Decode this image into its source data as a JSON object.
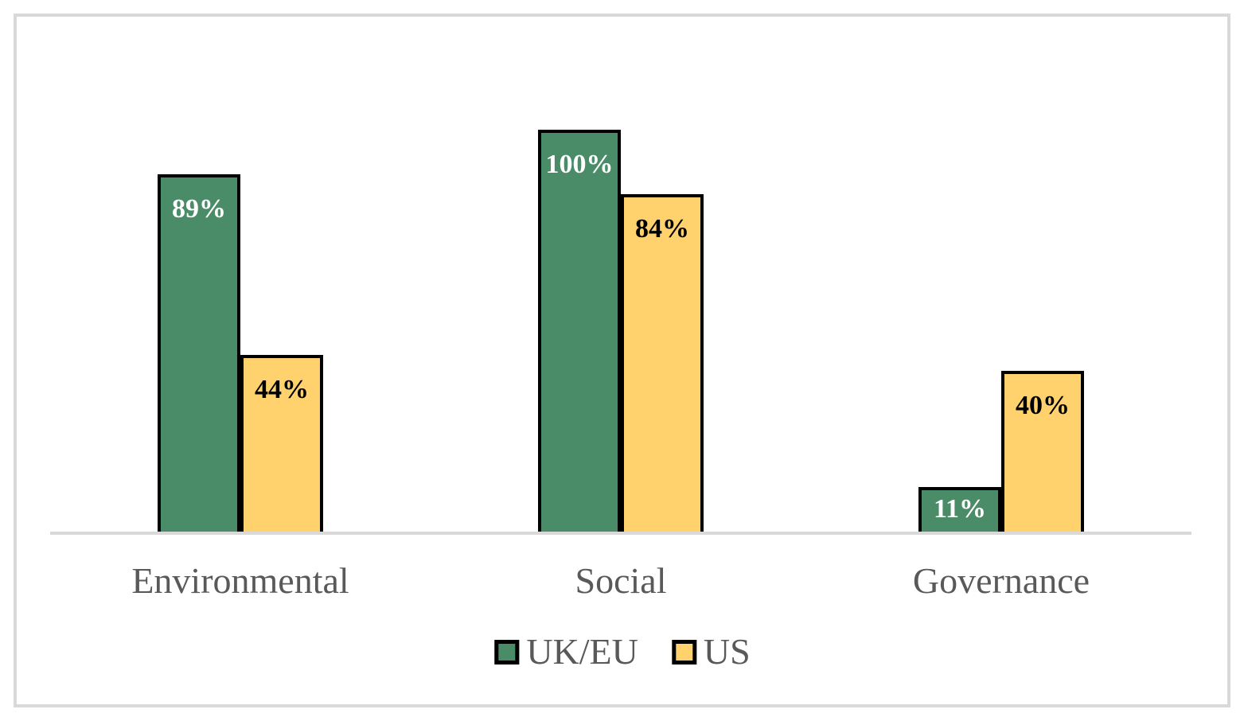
{
  "figure": {
    "frame_border_color": "#D9D9D9",
    "background_color": "#FFFFFF"
  },
  "chart_data": {
    "type": "bar",
    "title": "",
    "xlabel": "",
    "ylabel": "",
    "categories": [
      "Environmental",
      "Social",
      "Governance"
    ],
    "series": [
      {
        "name": "UK/EU",
        "values": [
          89,
          100,
          11
        ],
        "labels": [
          "89%",
          "100%",
          "11%"
        ],
        "color": "#4A8B68",
        "label_color": "#FFFFFF"
      },
      {
        "name": "US",
        "values": [
          44,
          84,
          40
        ],
        "labels": [
          "44%",
          "84%",
          "40%"
        ],
        "color": "#FFD26E",
        "label_color": "#000000"
      }
    ],
    "ylim": [
      0,
      100
    ],
    "grid": false,
    "y_axis_visible": false,
    "bar_border_color": "#000000",
    "axis_line_color": "#D9D9D9",
    "category_label_color": "#595959",
    "legend": {
      "position": "bottom",
      "entries": [
        "UK/EU",
        "US"
      ]
    }
  }
}
